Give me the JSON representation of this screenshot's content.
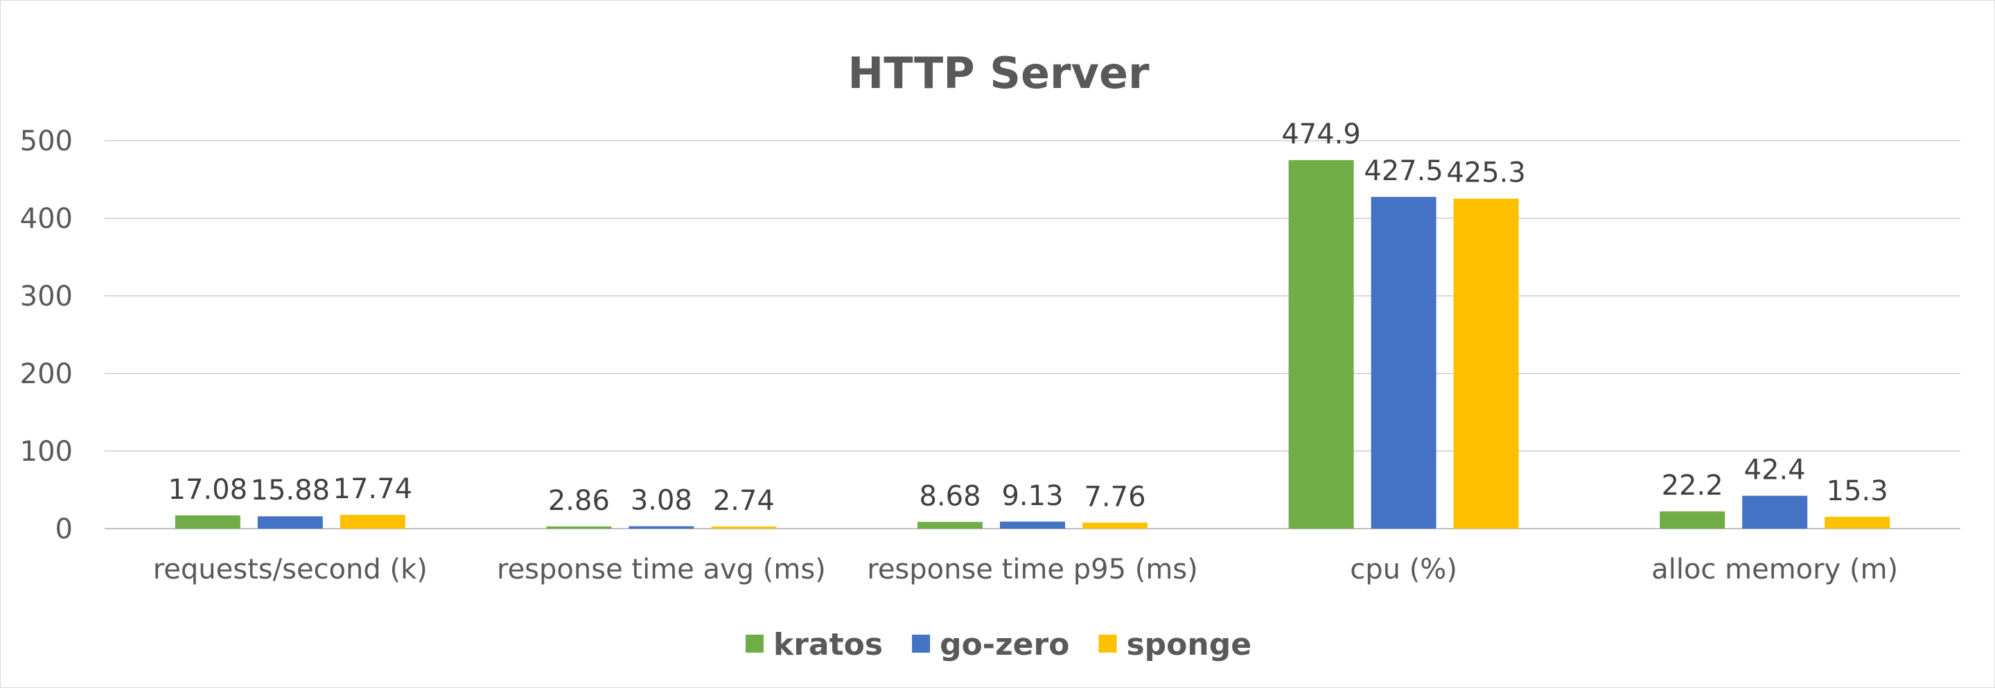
{
  "chart_data": {
    "type": "bar",
    "title": "HTTP Server",
    "xlabel": "",
    "ylabel": "",
    "categories": [
      "requests/second (k)",
      "response time avg (ms)",
      "response time p95 (ms)",
      "cpu (%)",
      "alloc memory (m)"
    ],
    "series": [
      {
        "name": "kratos",
        "color": "#70ad47",
        "values": [
          17.08,
          2.86,
          8.68,
          474.9,
          22.2
        ],
        "labels": [
          "17.08",
          "2.86",
          "8.68",
          "474.9",
          "22.2"
        ]
      },
      {
        "name": "go-zero",
        "color": "#4472c4",
        "values": [
          15.88,
          3.08,
          9.13,
          427.5,
          42.4
        ],
        "labels": [
          "15.88",
          "3.08",
          "9.13",
          "427.5",
          "42.4"
        ]
      },
      {
        "name": "sponge",
        "color": "#ffc000",
        "values": [
          17.74,
          2.74,
          7.76,
          425.3,
          15.3
        ],
        "labels": [
          "17.74",
          "2.74",
          "7.76",
          "425.3",
          "15.3"
        ]
      }
    ],
    "ylim": [
      0,
      500
    ],
    "yticks": [
      "0",
      "100",
      "200",
      "300",
      "400",
      "500"
    ],
    "grid": true,
    "legend_position": "bottom"
  }
}
